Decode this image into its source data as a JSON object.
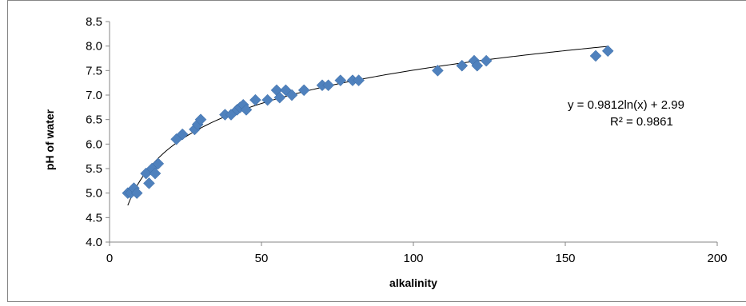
{
  "chart_data": {
    "type": "scatter",
    "title": "",
    "xlabel": "alkalinity",
    "ylabel": "pH of water",
    "xlim": [
      0,
      200
    ],
    "ylim": [
      4.0,
      8.5
    ],
    "x_ticks": [
      "0",
      "50",
      "100",
      "150",
      "200"
    ],
    "y_ticks": [
      "4.0",
      "4.5",
      "5.0",
      "5.5",
      "6.0",
      "6.5",
      "7.0",
      "7.5",
      "8.0",
      "8.5"
    ],
    "grid": false,
    "marker_color": "#4F81BD",
    "trendline_color": "#000000",
    "series": [
      {
        "points": [
          [
            6,
            5.0
          ],
          [
            7,
            5.0
          ],
          [
            8,
            5.1
          ],
          [
            9,
            5.0
          ],
          [
            12,
            5.4
          ],
          [
            13,
            5.2
          ],
          [
            14,
            5.5
          ],
          [
            15,
            5.4
          ],
          [
            16,
            5.6
          ],
          [
            22,
            6.1
          ],
          [
            24,
            6.2
          ],
          [
            28,
            6.3
          ],
          [
            29,
            6.4
          ],
          [
            30,
            6.5
          ],
          [
            38,
            6.6
          ],
          [
            40,
            6.6
          ],
          [
            42,
            6.7
          ],
          [
            43,
            6.75
          ],
          [
            44,
            6.8
          ],
          [
            45,
            6.7
          ],
          [
            48,
            6.9
          ],
          [
            52,
            6.9
          ],
          [
            55,
            7.1
          ],
          [
            56,
            6.95
          ],
          [
            58,
            7.1
          ],
          [
            60,
            7.0
          ],
          [
            64,
            7.1
          ],
          [
            70,
            7.2
          ],
          [
            72,
            7.2
          ],
          [
            76,
            7.3
          ],
          [
            80,
            7.3
          ],
          [
            82,
            7.3
          ],
          [
            108,
            7.5
          ],
          [
            116,
            7.6
          ],
          [
            120,
            7.7
          ],
          [
            121,
            7.6
          ],
          [
            124,
            7.7
          ],
          [
            160,
            7.8
          ],
          [
            164,
            7.9
          ]
        ]
      }
    ],
    "trendline": {
      "type": "logarithmic",
      "a": 0.9812,
      "b": 2.99,
      "x_from": 6,
      "x_to": 164
    },
    "equation_label": "y = 0.9812ln(x) + 2.99",
    "r2_label": "R² = 0.9861"
  }
}
